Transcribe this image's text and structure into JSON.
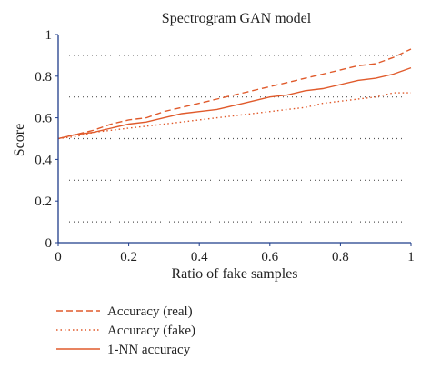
{
  "chart_data": {
    "type": "line",
    "title": "Spectrogram GAN model",
    "xlabel": "Ratio of fake samples",
    "ylabel": "Score",
    "xlim": [
      0,
      1
    ],
    "ylim": [
      0,
      1
    ],
    "xticks": [
      0,
      0.2,
      0.4,
      0.6,
      0.8,
      1
    ],
    "yticks": [
      0,
      0.2,
      0.4,
      0.6,
      0.8,
      1
    ],
    "xtick_labels": [
      "0",
      "0.2",
      "0.4",
      "0.6",
      "0.8",
      "1"
    ],
    "ytick_labels": [
      "0",
      "0.2",
      "0.4",
      "0.6",
      "0.8",
      "1"
    ],
    "grid": {
      "axis": "y",
      "style": "dotted",
      "values": [
        0.1,
        0.3,
        0.5,
        0.7,
        0.9
      ]
    },
    "legend_position": "bottom-left, below the axes",
    "series": [
      {
        "name": "Accuracy (real)",
        "style": "dashed",
        "color": "#e05a2b",
        "x": [
          0,
          0.05,
          0.1,
          0.15,
          0.2,
          0.25,
          0.3,
          0.35,
          0.4,
          0.45,
          0.5,
          0.55,
          0.6,
          0.65,
          0.7,
          0.75,
          0.8,
          0.85,
          0.9,
          0.95,
          1
        ],
        "y": [
          0.5,
          0.52,
          0.54,
          0.57,
          0.59,
          0.6,
          0.63,
          0.65,
          0.67,
          0.69,
          0.71,
          0.73,
          0.75,
          0.77,
          0.79,
          0.81,
          0.83,
          0.85,
          0.86,
          0.89,
          0.93
        ]
      },
      {
        "name": "Accuracy (fake)",
        "style": "dotted",
        "color": "#e05a2b",
        "x": [
          0,
          0.05,
          0.1,
          0.15,
          0.2,
          0.25,
          0.3,
          0.35,
          0.4,
          0.45,
          0.5,
          0.55,
          0.6,
          0.65,
          0.7,
          0.75,
          0.8,
          0.85,
          0.9,
          0.95,
          1
        ],
        "y": [
          0.5,
          0.51,
          0.53,
          0.54,
          0.55,
          0.56,
          0.57,
          0.58,
          0.59,
          0.6,
          0.61,
          0.62,
          0.63,
          0.64,
          0.65,
          0.67,
          0.68,
          0.69,
          0.7,
          0.72,
          0.72
        ]
      },
      {
        "name": "1-NN accuracy",
        "style": "solid",
        "color": "#e05a2b",
        "x": [
          0,
          0.05,
          0.1,
          0.15,
          0.2,
          0.25,
          0.3,
          0.35,
          0.4,
          0.45,
          0.5,
          0.55,
          0.6,
          0.65,
          0.7,
          0.75,
          0.8,
          0.85,
          0.9,
          0.95,
          1
        ],
        "y": [
          0.5,
          0.52,
          0.53,
          0.55,
          0.57,
          0.58,
          0.6,
          0.62,
          0.63,
          0.64,
          0.66,
          0.68,
          0.7,
          0.71,
          0.73,
          0.74,
          0.76,
          0.78,
          0.79,
          0.81,
          0.84
        ]
      }
    ]
  },
  "colors": {
    "axis": "#1f3d8a",
    "grid": "#555555",
    "line": "#e05a2b"
  }
}
